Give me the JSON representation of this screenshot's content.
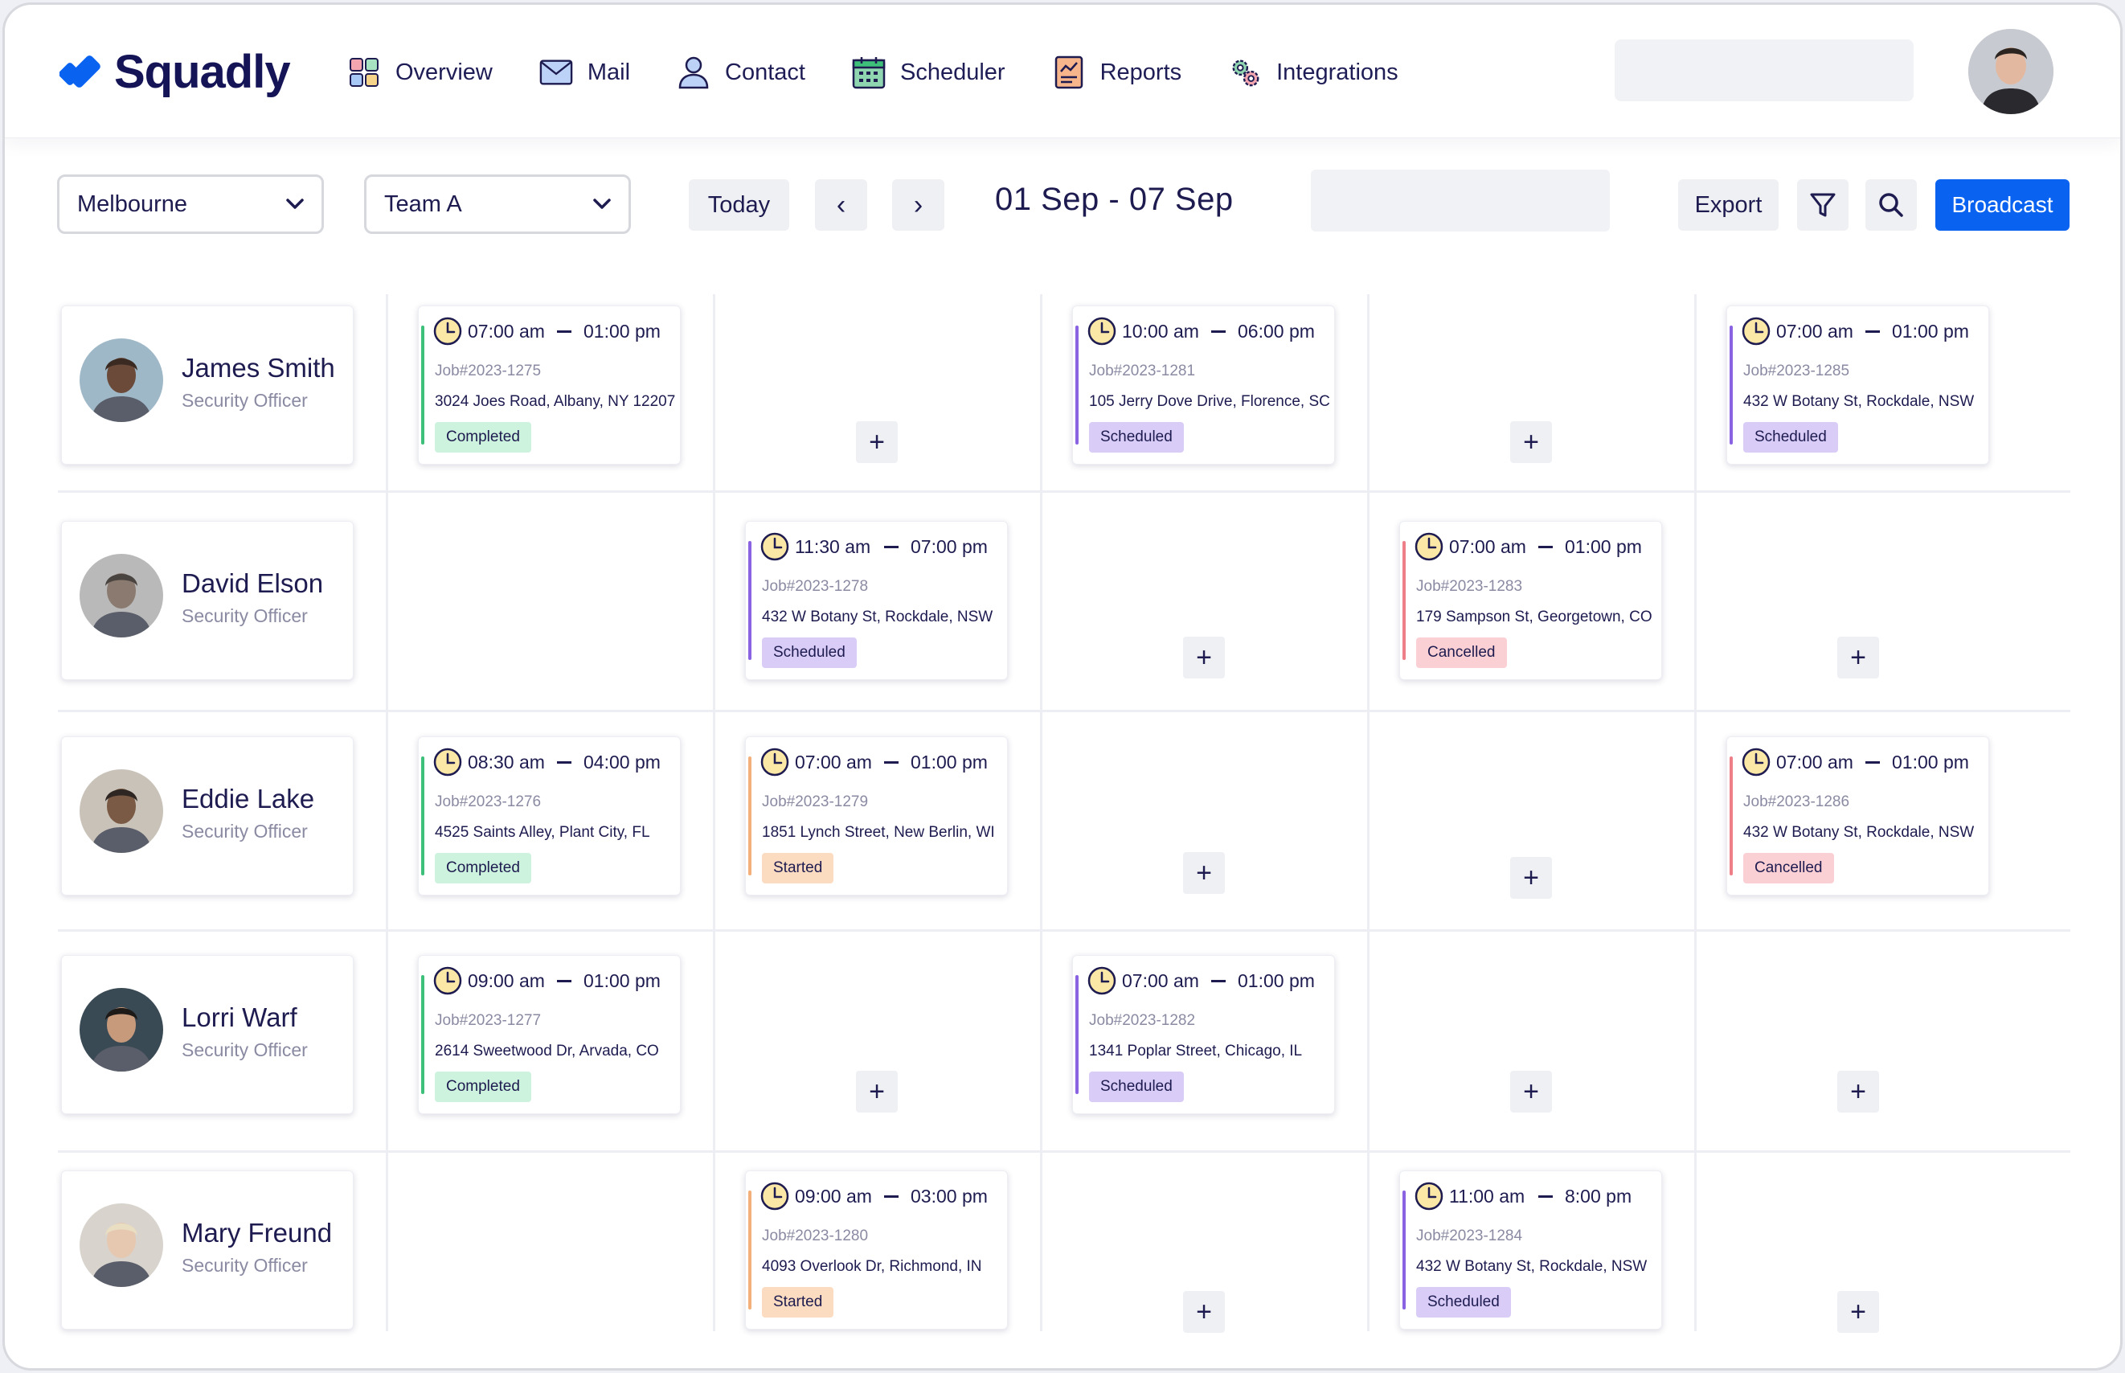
{
  "app": {
    "name": "Squadly"
  },
  "nav": [
    {
      "label": "Overview",
      "icon": "grid-icon"
    },
    {
      "label": "Mail",
      "icon": "mail-icon"
    },
    {
      "label": "Contact",
      "icon": "user-icon"
    },
    {
      "label": "Scheduler",
      "icon": "calendar-icon"
    },
    {
      "label": "Reports",
      "icon": "report-icon"
    },
    {
      "label": "Integrations",
      "icon": "gears-icon"
    }
  ],
  "toolbar": {
    "location": "Melbourne",
    "team": "Team A",
    "today_label": "Today",
    "prev_label": "‹",
    "next_label": "›",
    "date_range": "01 Sep - 07 Sep",
    "export_label": "Export",
    "broadcast_label": "Broadcast"
  },
  "colors": {
    "accent": "#0a63f0",
    "completed": "#3ebf7a",
    "scheduled": "#8a63e3",
    "started": "#f4b07a",
    "cancelled": "#ee7e88"
  },
  "employees": [
    {
      "name": "James Smith",
      "role": "Security Officer",
      "cells": [
        {
          "type": "shift",
          "start": "07:00 am",
          "end": "01:00 pm",
          "job": "Job#2023-1275",
          "address": "3024 Joes Road, Albany, NY 12207",
          "status": "Completed"
        },
        {
          "type": "add",
          "label": "+"
        },
        {
          "type": "shift",
          "start": "10:00 am",
          "end": "06:00 pm",
          "job": "Job#2023-1281",
          "address": "105 Jerry Dove Drive, Florence, SC",
          "status": "Scheduled"
        },
        {
          "type": "add",
          "label": "+"
        },
        {
          "type": "shift",
          "start": "07:00 am",
          "end": "01:00 pm",
          "job": "Job#2023-1285",
          "address": "432 W Botany St, Rockdale, NSW",
          "status": "Scheduled"
        }
      ]
    },
    {
      "name": "David Elson",
      "role": "Security Officer",
      "cells": [
        {
          "type": "empty"
        },
        {
          "type": "shift",
          "start": "11:30 am",
          "end": "07:00 pm",
          "job": "Job#2023-1278",
          "address": "432 W Botany St, Rockdale, NSW",
          "status": "Scheduled"
        },
        {
          "type": "add",
          "label": "+"
        },
        {
          "type": "shift",
          "start": "07:00 am",
          "end": "01:00 pm",
          "job": "Job#2023-1283",
          "address": "179 Sampson St, Georgetown, CO",
          "status": "Cancelled"
        },
        {
          "type": "add",
          "label": "+"
        }
      ]
    },
    {
      "name": "Eddie Lake",
      "role": "Security Officer",
      "cells": [
        {
          "type": "shift",
          "start": "08:30 am",
          "end": "04:00 pm",
          "job": "Job#2023-1276",
          "address": "4525 Saints Alley, Plant City, FL",
          "status": "Completed"
        },
        {
          "type": "shift",
          "start": "07:00 am",
          "end": "01:00 pm",
          "job": "Job#2023-1279",
          "address": "1851 Lynch Street, New Berlin, WI",
          "status": "Started"
        },
        {
          "type": "add",
          "label": "+"
        },
        {
          "type": "add",
          "label": "+"
        },
        {
          "type": "shift",
          "start": "07:00 am",
          "end": "01:00 pm",
          "job": "Job#2023-1286",
          "address": "432 W Botany St, Rockdale, NSW",
          "status": "Cancelled"
        }
      ]
    },
    {
      "name": "Lorri Warf",
      "role": "Security Officer",
      "cells": [
        {
          "type": "shift",
          "start": "09:00 am",
          "end": "01:00 pm",
          "job": "Job#2023-1277",
          "address": "2614 Sweetwood Dr, Arvada, CO",
          "status": "Completed"
        },
        {
          "type": "add",
          "label": "+"
        },
        {
          "type": "shift",
          "start": "07:00 am",
          "end": "01:00 pm",
          "job": "Job#2023-1282",
          "address": "1341 Poplar Street, Chicago, IL",
          "status": "Scheduled"
        },
        {
          "type": "add",
          "label": "+"
        },
        {
          "type": "add",
          "label": "+"
        }
      ]
    },
    {
      "name": "Mary Freund",
      "role": "Security Officer",
      "cells": [
        {
          "type": "empty"
        },
        {
          "type": "shift",
          "start": "09:00 am",
          "end": "03:00 pm",
          "job": "Job#2023-1280",
          "address": "4093 Overlook Dr, Richmond, IN",
          "status": "Started"
        },
        {
          "type": "add",
          "label": "+"
        },
        {
          "type": "shift",
          "start": "11:00 am",
          "end": "8:00 pm",
          "job": "Job#2023-1284",
          "address": "432 W Botany St, Rockdale, NSW",
          "status": "Scheduled"
        },
        {
          "type": "add",
          "label": "+"
        }
      ]
    }
  ]
}
